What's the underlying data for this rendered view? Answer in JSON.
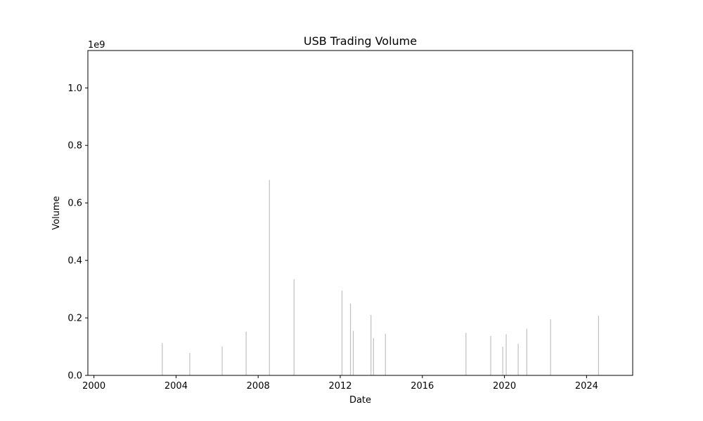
{
  "chart_data": {
    "type": "bar",
    "title": "USB Trading Volume",
    "xlabel": "Date",
    "ylabel": "Volume",
    "y_offset_label": "1e9",
    "y_scale_factor": 1000000000,
    "xlim": [
      "1999-09-15",
      "2026-04-01"
    ],
    "ylim": [
      0,
      1130000000
    ],
    "x_ticks": [
      "2000",
      "2004",
      "2008",
      "2012",
      "2016",
      "2020",
      "2024"
    ],
    "y_ticks": [
      "0.0",
      "0.2",
      "0.4",
      "0.6",
      "0.8",
      "1.0"
    ],
    "grid": false,
    "bar_color": "#c0c0c0",
    "x": [
      "2003-05-01",
      "2004-09-01",
      "2006-04-01",
      "2007-06-01",
      "2008-07-20",
      "2009-10-01",
      "2012-02-01",
      "2012-07-01",
      "2012-08-20",
      "2013-07-01",
      "2013-08-15",
      "2014-03-15",
      "2018-02-15",
      "2019-05-01",
      "2019-12-01",
      "2020-02-01",
      "2020-09-01",
      "2021-02-01",
      "2022-04-01",
      "2024-08-01"
    ],
    "values": [
      112000000,
      78000000,
      100000000,
      152000000,
      680000000,
      335000000,
      295000000,
      250000000,
      155000000,
      210000000,
      130000000,
      145000000,
      148000000,
      137000000,
      100000000,
      143000000,
      110000000,
      162000000,
      195000000,
      207000000
    ]
  }
}
